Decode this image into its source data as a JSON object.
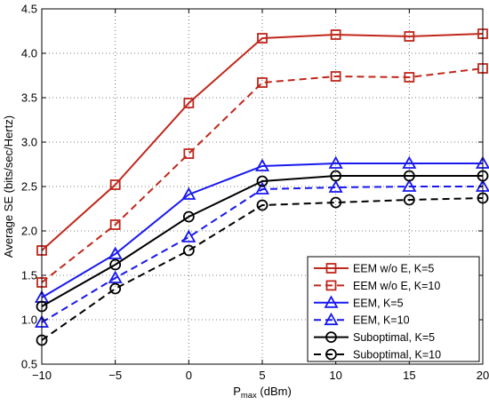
{
  "chart_data": {
    "type": "line",
    "title": "",
    "xlabel": "P",
    "xlabel_sub": "max",
    "xlabel_unit": " (dBm)",
    "ylabel": "Average SE (bits/sec/Hertz)",
    "xlim": [
      -10,
      20
    ],
    "ylim": [
      0.5,
      4.5
    ],
    "x": [
      -10,
      -5,
      0,
      5,
      10,
      15,
      20
    ],
    "xticks": [
      -10,
      -5,
      0,
      5,
      10,
      15,
      20
    ],
    "xtick_labels": [
      "−10",
      "−5",
      "0",
      "5",
      "10",
      "15",
      "20"
    ],
    "yticks": [
      0.5,
      1.0,
      1.5,
      2.0,
      2.5,
      3.0,
      3.5,
      4.0,
      4.5
    ],
    "ytick_labels": [
      "0.5",
      "1.0",
      "1.5",
      "2.0",
      "2.5",
      "3.0",
      "3.5",
      "4.0",
      "4.5"
    ],
    "grid": true,
    "legend_position": "bottom-right",
    "series": [
      {
        "name": "EEM w/o E, K=5",
        "values": [
          1.78,
          2.52,
          3.44,
          4.17,
          4.21,
          4.19,
          4.22
        ],
        "color": "#c0271b",
        "dashed": false,
        "marker": "square"
      },
      {
        "name": "EEM w/o E, K=10",
        "values": [
          1.42,
          2.07,
          2.87,
          3.67,
          3.74,
          3.73,
          3.83
        ],
        "color": "#c0271b",
        "dashed": true,
        "marker": "square"
      },
      {
        "name": "EEM, K=5",
        "values": [
          1.25,
          1.74,
          2.41,
          2.73,
          2.76,
          2.76,
          2.76
        ],
        "color": "#1818f0",
        "dashed": false,
        "marker": "triangle"
      },
      {
        "name": "EEM, K=10",
        "values": [
          0.97,
          1.47,
          1.93,
          2.47,
          2.49,
          2.5,
          2.5
        ],
        "color": "#1818f0",
        "dashed": true,
        "marker": "triangle"
      },
      {
        "name": "Suboptimal, K=5",
        "values": [
          1.15,
          1.62,
          2.16,
          2.56,
          2.62,
          2.62,
          2.62
        ],
        "color": "#000000",
        "dashed": false,
        "marker": "circle"
      },
      {
        "name": "Suboptimal, K=10",
        "values": [
          0.77,
          1.35,
          1.78,
          2.29,
          2.32,
          2.35,
          2.37
        ],
        "color": "#000000",
        "dashed": true,
        "marker": "circle"
      }
    ]
  }
}
